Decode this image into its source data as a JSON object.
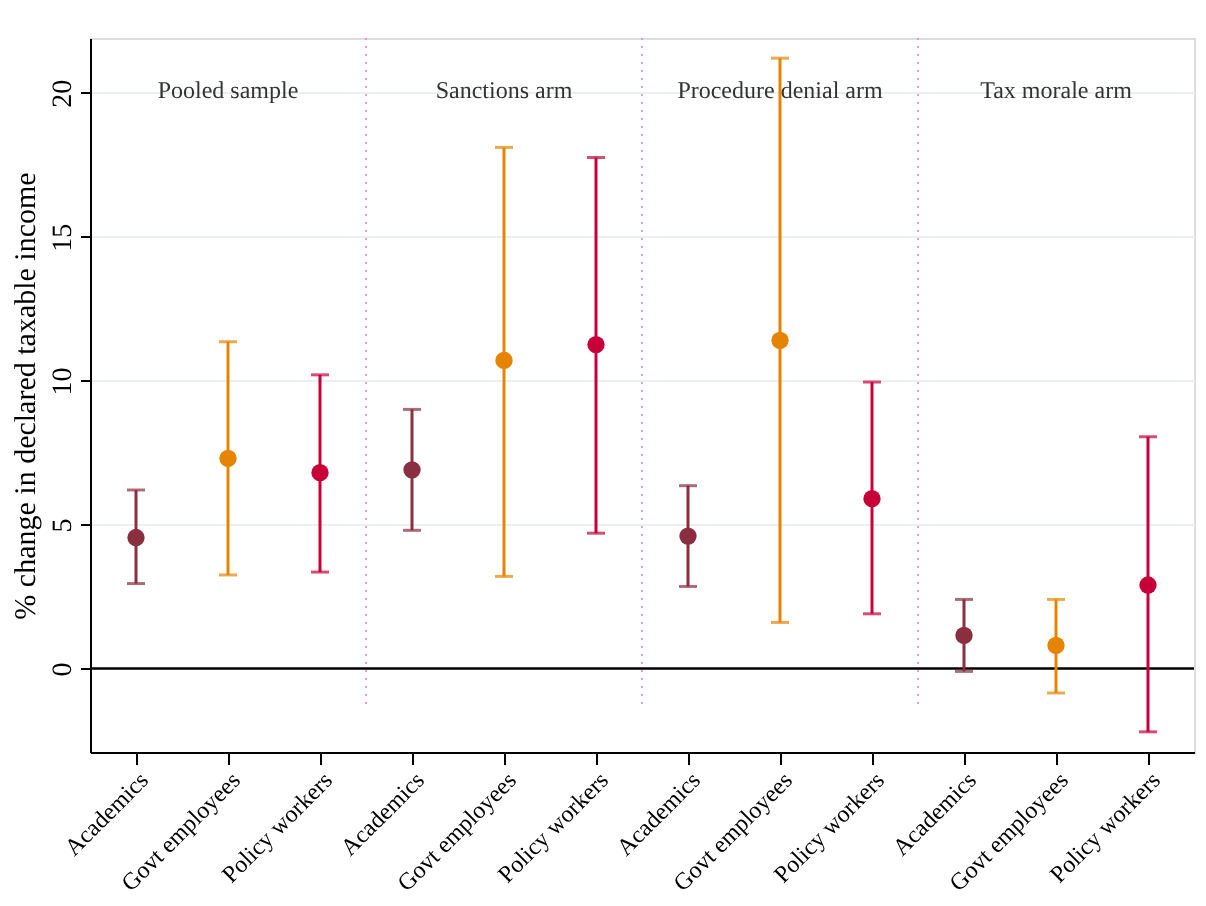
{
  "chart_data": {
    "type": "scatter",
    "ylabel": "% change in declared taxable income",
    "categories": [
      "Academics",
      "Govt employees",
      "Policy workers",
      "Academics",
      "Govt employees",
      "Policy workers",
      "Academics",
      "Govt employees",
      "Policy workers",
      "Academics",
      "Govt employees",
      "Policy workers"
    ],
    "values": [
      4.55,
      7.3,
      6.8,
      6.9,
      10.7,
      11.25,
      4.6,
      11.4,
      5.9,
      1.15,
      0.8,
      2.9
    ],
    "errors": [
      [
        2.95,
        6.2
      ],
      [
        3.25,
        11.35
      ],
      [
        3.35,
        10.2
      ],
      [
        4.8,
        9.0
      ],
      [
        3.2,
        18.1
      ],
      [
        4.7,
        17.75
      ],
      [
        2.85,
        6.35
      ],
      [
        1.6,
        21.2
      ],
      [
        1.9,
        9.95
      ],
      [
        -0.1,
        2.4
      ],
      [
        -0.85,
        2.4
      ],
      [
        -2.2,
        8.05
      ]
    ],
    "colors": [
      "#8b2e3f",
      "#e68400",
      "#c8003a",
      "#8b2e3f",
      "#e68400",
      "#c8003a",
      "#8b2e3f",
      "#e68400",
      "#c8003a",
      "#8b2e3f",
      "#e68400",
      "#c8003a"
    ],
    "ylim": [
      -2.9,
      21.9
    ],
    "yticks": [
      0,
      5,
      10,
      15,
      20
    ],
    "grid": "y",
    "marker": "circle",
    "ref_lines": [
      {
        "axis": "y",
        "value": 0,
        "color": "#000000"
      }
    ],
    "annotations": [
      "Pooled sample",
      "Sanctions arm",
      "Procedure denial arm",
      "Tax morale arm"
    ]
  }
}
